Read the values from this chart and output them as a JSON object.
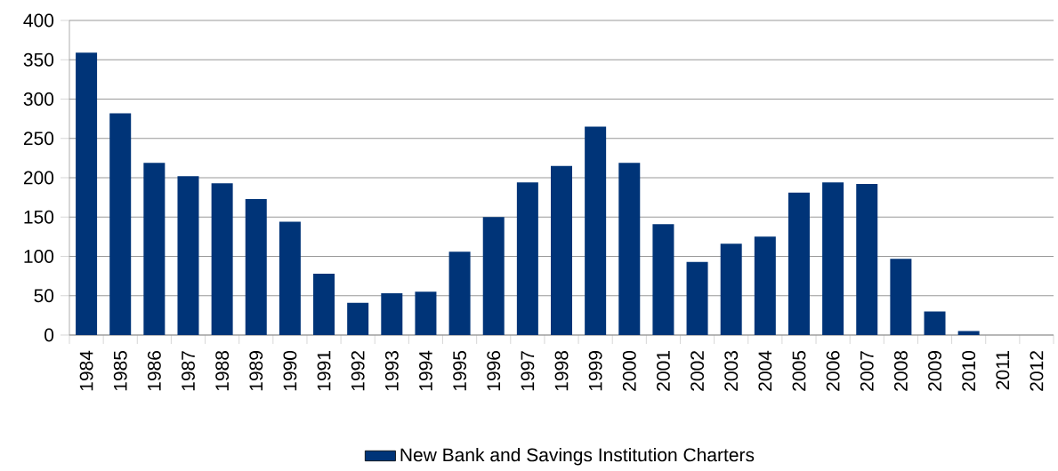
{
  "chart_data": {
    "type": "bar",
    "categories": [
      "1984",
      "1985",
      "1986",
      "1987",
      "1988",
      "1989",
      "1990",
      "1991",
      "1992",
      "1993",
      "1994",
      "1995",
      "1996",
      "1997",
      "1998",
      "1999",
      "2000",
      "2001",
      "2002",
      "2003",
      "2004",
      "2005",
      "2006",
      "2007",
      "2008",
      "2009",
      "2010",
      "2011",
      "2012"
    ],
    "series": [
      {
        "name": "New Bank and Savings Institution Charters",
        "color": "#003478",
        "values": [
          359,
          282,
          219,
          202,
          193,
          173,
          144,
          78,
          41,
          53,
          55,
          106,
          150,
          194,
          215,
          265,
          219,
          141,
          93,
          116,
          125,
          181,
          194,
          192,
          97,
          30,
          5,
          null,
          null
        ]
      }
    ],
    "ylim": [
      0,
      400
    ],
    "yticks": [
      0,
      50,
      100,
      150,
      200,
      250,
      300,
      350,
      400
    ],
    "grid": "y",
    "legend": "bottom"
  }
}
